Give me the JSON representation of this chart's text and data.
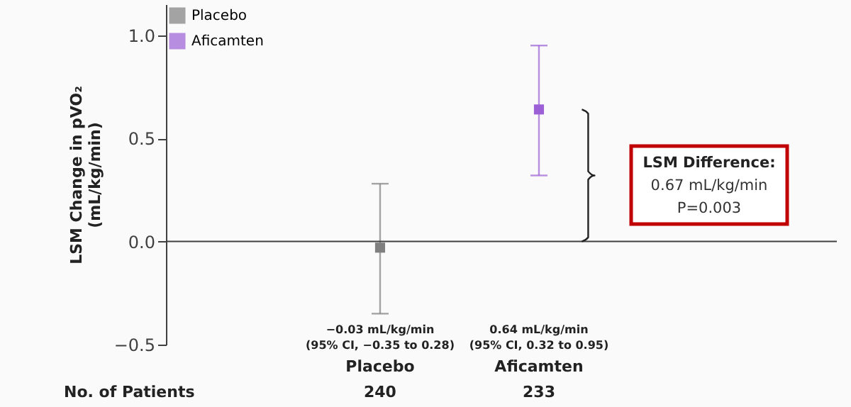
{
  "chart_data": {
    "type": "scatter",
    "ylabel": "LSM Change in pVO₂\n(mL/kg/min)",
    "categories": [
      "Placebo",
      "Aficamten"
    ],
    "series": [
      {
        "name": "Placebo",
        "color": "#7f7f7f",
        "values": [
          -0.03,
          null
        ],
        "errors": [
          [
            -0.35,
            0.28
          ],
          null
        ]
      },
      {
        "name": "Aficamten",
        "color": "#9b5fd6",
        "values": [
          null,
          0.64
        ],
        "errors": [
          null,
          [
            0.32,
            0.95
          ]
        ]
      }
    ],
    "ylim": [
      -0.5,
      1.15
    ],
    "yticks": [
      {
        "value": -0.5,
        "label": "−0.5"
      },
      {
        "value": 0,
        "label": "0.0"
      },
      {
        "value": 0.5,
        "label": "0.5"
      },
      {
        "value": 1,
        "label": "1.0"
      }
    ],
    "ref_lines": [
      {
        "axis": "y",
        "value": 0,
        "color": "#404040"
      }
    ],
    "annotations": [
      "LSM Difference:\n0.67 mL/kg/min\nP=0.003",
      "No. of Patients",
      "−0.03 mL/kg/min\n(95% CI, −0.35 to 0.28)",
      "0.64 mL/kg/min\n(95% CI, 0.32 to 0.95)",
      "240",
      "233"
    ],
    "marker": "square",
    "grid": false,
    "legend": "top left"
  }
}
